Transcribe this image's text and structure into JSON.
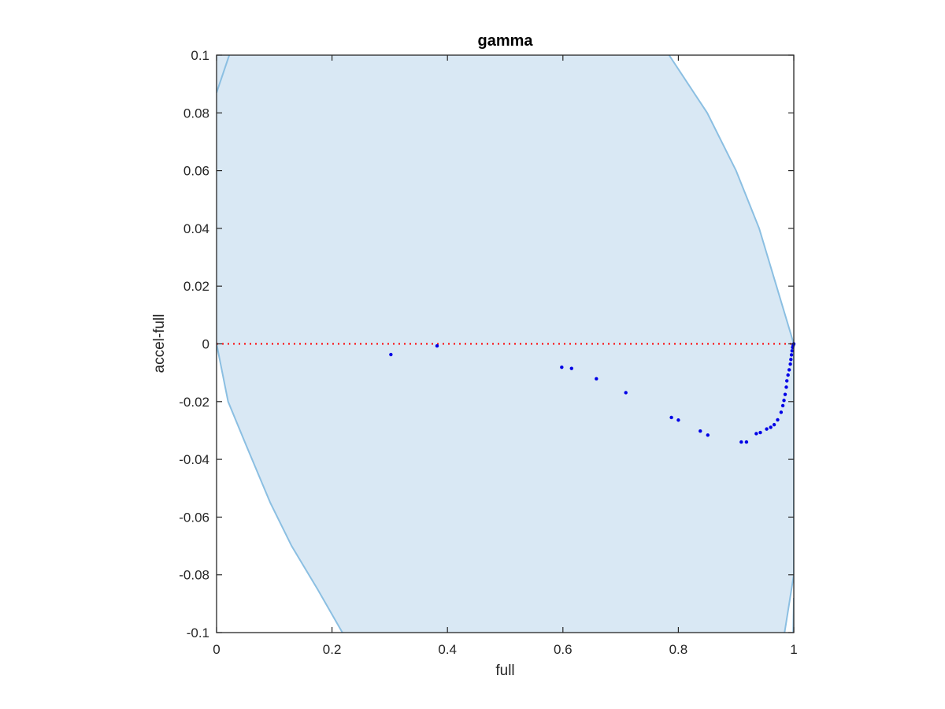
{
  "chart_data": {
    "type": "scatter",
    "title": "gamma",
    "xlabel": "full",
    "ylabel": "accel-full",
    "xlim": [
      0,
      1
    ],
    "ylim": [
      -0.1,
      0.1
    ],
    "xticks": [
      0,
      0.2,
      0.4,
      0.6,
      0.8,
      1
    ],
    "xtick_labels": [
      "0",
      "0.2",
      "0.4",
      "0.6",
      "0.8",
      "1"
    ],
    "yticks": [
      -0.1,
      -0.08,
      -0.06,
      -0.04,
      -0.02,
      0,
      0.02,
      0.04,
      0.06,
      0.08,
      0.1
    ],
    "ytick_labels": [
      "-0.1",
      "-0.08",
      "-0.06",
      "-0.04",
      "-0.02",
      "0",
      "0.02",
      "0.04",
      "0.06",
      "0.08",
      "0.1"
    ],
    "grid": false,
    "reference_line": {
      "y": 0,
      "color": "#ff0000",
      "style": "dotted"
    },
    "region": {
      "fill": "#d9e8f4",
      "edge": "#8bbfe2",
      "left_boundary": [
        [
          0.0,
          0.087
        ],
        [
          0.022,
          0.1
        ],
        [
          0.0,
          0.0
        ],
        [
          0.02,
          -0.02
        ],
        [
          0.051,
          -0.035
        ],
        [
          0.093,
          -0.055
        ],
        [
          0.13,
          -0.07
        ],
        [
          0.175,
          -0.085
        ],
        [
          0.218,
          -0.1
        ]
      ],
      "right_boundary": [
        [
          0.784,
          0.1
        ],
        [
          0.85,
          0.08
        ],
        [
          0.9,
          0.06
        ],
        [
          0.94,
          0.04
        ],
        [
          0.97,
          0.02
        ],
        [
          1.0,
          0.0
        ],
        [
          1.0,
          -0.02
        ],
        [
          1.0,
          -0.04
        ],
        [
          1.0,
          -0.06
        ],
        [
          1.0,
          -0.08
        ],
        [
          0.984,
          -0.1
        ]
      ],
      "right_edge_lower": [
        [
          0.999,
          -0.1
        ],
        [
          1.0,
          -0.088
        ]
      ]
    },
    "series": [
      {
        "color": "#0000e6",
        "x": [
          0.302,
          0.382,
          0.598,
          0.615,
          0.658,
          0.709,
          0.788,
          0.8,
          0.838,
          0.851,
          0.909,
          0.918,
          0.935,
          0.942,
          0.953,
          0.96,
          0.966,
          0.972,
          0.978,
          0.981,
          0.983,
          0.985,
          0.987,
          0.988,
          0.99,
          0.992,
          0.994,
          0.995,
          0.996,
          0.997,
          0.998,
          0.999,
          1.0
        ],
        "y": [
          -0.0037,
          -0.0007,
          -0.0081,
          -0.0085,
          -0.0121,
          -0.0169,
          -0.0255,
          -0.0264,
          -0.0302,
          -0.0316,
          -0.034,
          -0.034,
          -0.0311,
          -0.0307,
          -0.0295,
          -0.0289,
          -0.028,
          -0.0263,
          -0.0237,
          -0.0214,
          -0.0196,
          -0.0175,
          -0.015,
          -0.0128,
          -0.0108,
          -0.009,
          -0.007,
          -0.0054,
          -0.0038,
          -0.0024,
          -0.0012,
          -0.0005,
          0.0
        ]
      }
    ]
  }
}
